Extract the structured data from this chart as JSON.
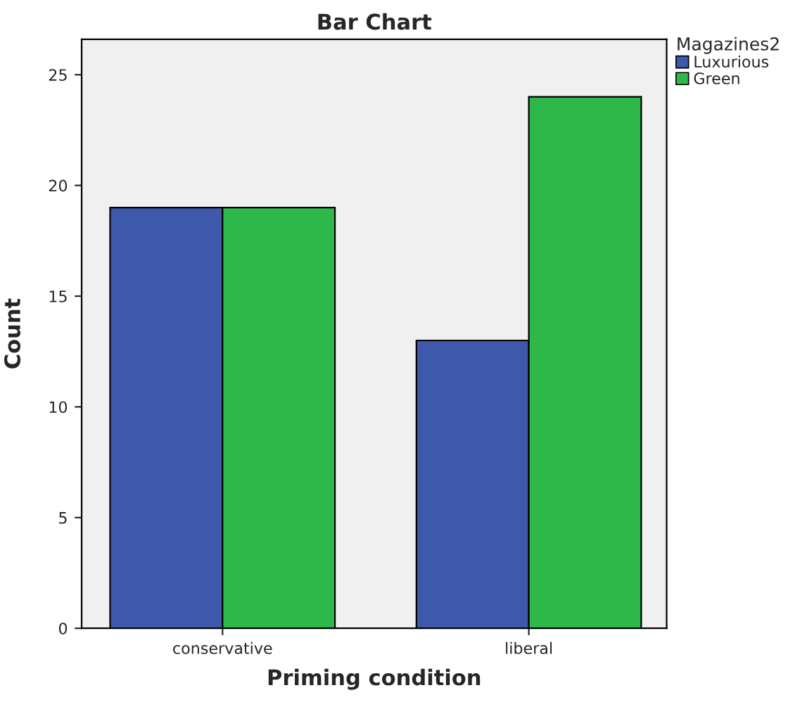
{
  "chart_data": {
    "type": "bar",
    "title": "Bar Chart",
    "xlabel": "Priming condition",
    "ylabel": "Count",
    "legend_title": "Magazines2",
    "categories": [
      "conservative",
      "liberal"
    ],
    "series": [
      {
        "name": "Luxurious",
        "color": "#3e58ac",
        "values": [
          19,
          13
        ]
      },
      {
        "name": "Green",
        "color": "#2fb84a",
        "values": [
          19,
          24
        ]
      }
    ],
    "ylim": [
      0,
      26.6
    ],
    "yticks": [
      0,
      5,
      10,
      15,
      20,
      25
    ],
    "grid": false,
    "legend": "top right"
  }
}
